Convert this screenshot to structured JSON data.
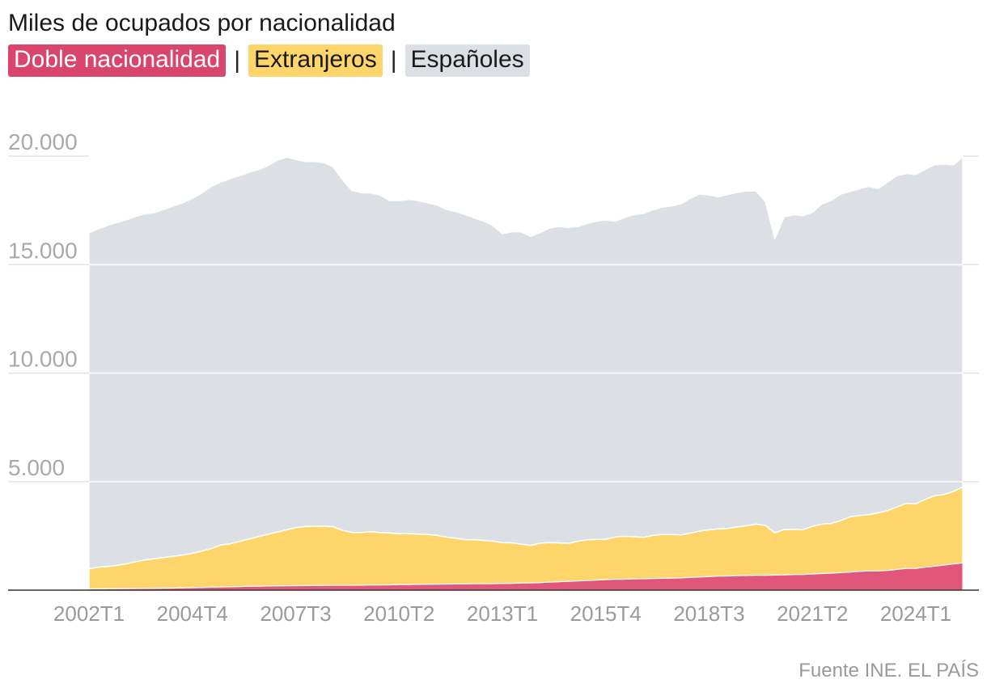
{
  "title": "Miles de ocupados por nacionalidad",
  "legend_separator": "|",
  "source": "Fuente INE. EL PAÍS",
  "colors": {
    "doble": "#e1577c",
    "doble_legend": "#d9456d",
    "extranjeros": "#fdd56a",
    "espanoles": "#dcdfe3",
    "grid": "#e3e3e3",
    "baseline": "#333333"
  },
  "chart_data": {
    "type": "area",
    "stacked": true,
    "title": "Miles de ocupados por nacionalidad",
    "xlabel": "",
    "ylabel": "",
    "ylim": [
      0,
      22500
    ],
    "yticks": [
      5000,
      10000,
      15000,
      20000
    ],
    "ytick_labels": [
      "5.000",
      "10.000",
      "15.000",
      "20.000"
    ],
    "xtick_labels": [
      "2002T1",
      "2004T4",
      "2007T3",
      "2010T2",
      "2013T1",
      "2015T4",
      "2018T3",
      "2021T2",
      "2024T1"
    ],
    "x": [
      "2002T1",
      "2002T2",
      "2002T3",
      "2002T4",
      "2003T1",
      "2003T2",
      "2003T3",
      "2003T4",
      "2004T1",
      "2004T2",
      "2004T3",
      "2004T4",
      "2005T1",
      "2005T2",
      "2005T3",
      "2005T4",
      "2006T1",
      "2006T2",
      "2006T3",
      "2006T4",
      "2007T1",
      "2007T2",
      "2007T3",
      "2007T4",
      "2008T1",
      "2008T2",
      "2008T3",
      "2008T4",
      "2009T1",
      "2009T2",
      "2009T3",
      "2009T4",
      "2010T1",
      "2010T2",
      "2010T3",
      "2010T4",
      "2011T1",
      "2011T2",
      "2011T3",
      "2011T4",
      "2012T1",
      "2012T2",
      "2012T3",
      "2012T4",
      "2013T1",
      "2013T2",
      "2013T3",
      "2013T4",
      "2014T1",
      "2014T2",
      "2014T3",
      "2014T4",
      "2015T1",
      "2015T2",
      "2015T3",
      "2015T4",
      "2016T1",
      "2016T2",
      "2016T3",
      "2016T4",
      "2017T1",
      "2017T2",
      "2017T3",
      "2017T4",
      "2018T1",
      "2018T2",
      "2018T3",
      "2018T4",
      "2019T1",
      "2019T2",
      "2019T3",
      "2019T4",
      "2020T1",
      "2020T2",
      "2020T3",
      "2020T4",
      "2021T1",
      "2021T2",
      "2021T3",
      "2021T4",
      "2022T1",
      "2022T2",
      "2022T3",
      "2022T4",
      "2023T1",
      "2023T2",
      "2023T3",
      "2023T4",
      "2024T1",
      "2024T2",
      "2024T3",
      "2024T4",
      "2025T1",
      "2025T2"
    ],
    "series": [
      {
        "name": "Doble nacionalidad",
        "values": [
          50,
          55,
          60,
          60,
          65,
          70,
          75,
          80,
          85,
          90,
          100,
          110,
          120,
          130,
          140,
          150,
          160,
          170,
          180,
          185,
          190,
          195,
          200,
          205,
          210,
          215,
          220,
          220,
          220,
          225,
          230,
          235,
          240,
          250,
          255,
          260,
          265,
          270,
          275,
          280,
          280,
          285,
          290,
          295,
          300,
          310,
          320,
          330,
          340,
          360,
          380,
          400,
          420,
          440,
          460,
          480,
          490,
          500,
          510,
          520,
          530,
          540,
          550,
          560,
          580,
          600,
          620,
          640,
          650,
          660,
          670,
          680,
          680,
          690,
          700,
          710,
          720,
          740,
          760,
          780,
          800,
          830,
          860,
          880,
          880,
          900,
          950,
          1000,
          1000,
          1050,
          1100,
          1150,
          1200,
          1250
        ]
      },
      {
        "name": "Extranjeros",
        "values": [
          930,
          1000,
          1030,
          1080,
          1150,
          1240,
          1320,
          1370,
          1420,
          1470,
          1520,
          1580,
          1680,
          1780,
          1930,
          1980,
          2080,
          2180,
          2280,
          2380,
          2480,
          2580,
          2680,
          2730,
          2730,
          2740,
          2700,
          2530,
          2440,
          2430,
          2460,
          2420,
          2390,
          2350,
          2340,
          2320,
          2300,
          2260,
          2170,
          2110,
          2050,
          2040,
          2000,
          1960,
          1890,
          1870,
          1800,
          1730,
          1820,
          1830,
          1800,
          1750,
          1830,
          1880,
          1880,
          1860,
          1960,
          1980,
          1950,
          1910,
          1990,
          2020,
          2010,
          1980,
          2040,
          2120,
          2160,
          2180,
          2190,
          2250,
          2300,
          2360,
          2300,
          1950,
          2090,
          2090,
          2060,
          2200,
          2280,
          2290,
          2400,
          2550,
          2580,
          2600,
          2680,
          2760,
          2880,
          3000,
          2980,
          3130,
          3250,
          3250,
          3350,
          3500
        ]
      },
      {
        "name": "Españoles",
        "values": [
          15480,
          15600,
          15720,
          15810,
          15855,
          15910,
          15950,
          15950,
          16045,
          16140,
          16230,
          16360,
          16500,
          16690,
          16730,
          16830,
          16850,
          16900,
          16910,
          16985,
          17130,
          17175,
          16970,
          16815,
          16810,
          16745,
          16580,
          16150,
          15740,
          15665,
          15610,
          15545,
          15320,
          15350,
          15410,
          15370,
          15285,
          15220,
          15105,
          15060,
          14980,
          14825,
          14710,
          14545,
          14230,
          14340,
          14390,
          14240,
          14310,
          14490,
          14570,
          14560,
          14500,
          14570,
          14660,
          14710,
          14550,
          14690,
          14840,
          14920,
          15000,
          15090,
          15140,
          15260,
          15430,
          15530,
          15420,
          15310,
          15390,
          15410,
          15420,
          15360,
          14920,
          13560,
          14410,
          14500,
          14480,
          14460,
          14760,
          14880,
          15050,
          14990,
          15060,
          15120,
          14940,
          15140,
          15270,
          15200,
          15170,
          15200,
          15250,
          15230,
          15050,
          15200
        ]
      }
    ],
    "legend_position": "top-left",
    "grid": true,
    "source": "Fuente INE. EL PAÍS"
  }
}
